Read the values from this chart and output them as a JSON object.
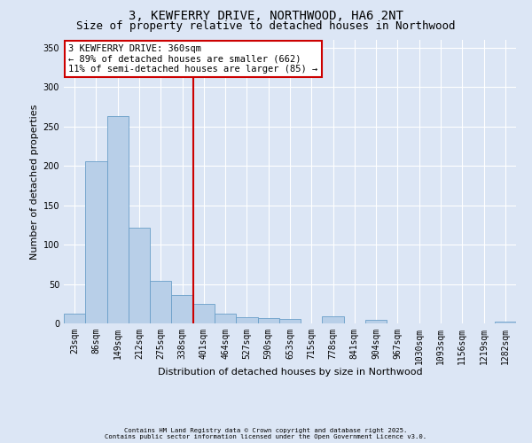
{
  "title1": "3, KEWFERRY DRIVE, NORTHWOOD, HA6 2NT",
  "title2": "Size of property relative to detached houses in Northwood",
  "xlabel": "Distribution of detached houses by size in Northwood",
  "ylabel": "Number of detached properties",
  "categories": [
    "23sqm",
    "86sqm",
    "149sqm",
    "212sqm",
    "275sqm",
    "338sqm",
    "401sqm",
    "464sqm",
    "527sqm",
    "590sqm",
    "653sqm",
    "715sqm",
    "778sqm",
    "841sqm",
    "904sqm",
    "967sqm",
    "1030sqm",
    "1093sqm",
    "1156sqm",
    "1219sqm",
    "1282sqm"
  ],
  "values": [
    12,
    206,
    263,
    121,
    54,
    36,
    25,
    12,
    8,
    7,
    6,
    0,
    9,
    0,
    4,
    0,
    0,
    0,
    0,
    0,
    2
  ],
  "bar_color": "#b8cfe8",
  "bar_edge_color": "#6a9fc8",
  "background_color": "#dce6f5",
  "grid_color": "#ffffff",
  "vline_x": 5.5,
  "vline_color": "#cc0000",
  "annotation_text": "3 KEWFERRY DRIVE: 360sqm\n← 89% of detached houses are smaller (662)\n11% of semi-detached houses are larger (85) →",
  "annotation_box_color": "#ffffff",
  "annotation_box_edge": "#cc0000",
  "footnote1": "Contains HM Land Registry data © Crown copyright and database right 2025.",
  "footnote2": "Contains public sector information licensed under the Open Government Licence v3.0.",
  "ylim": [
    0,
    360
  ],
  "yticks": [
    0,
    50,
    100,
    150,
    200,
    250,
    300,
    350
  ],
  "title1_fontsize": 10,
  "title2_fontsize": 9,
  "annot_fontsize": 7.5,
  "tick_fontsize": 7,
  "label_fontsize": 8
}
